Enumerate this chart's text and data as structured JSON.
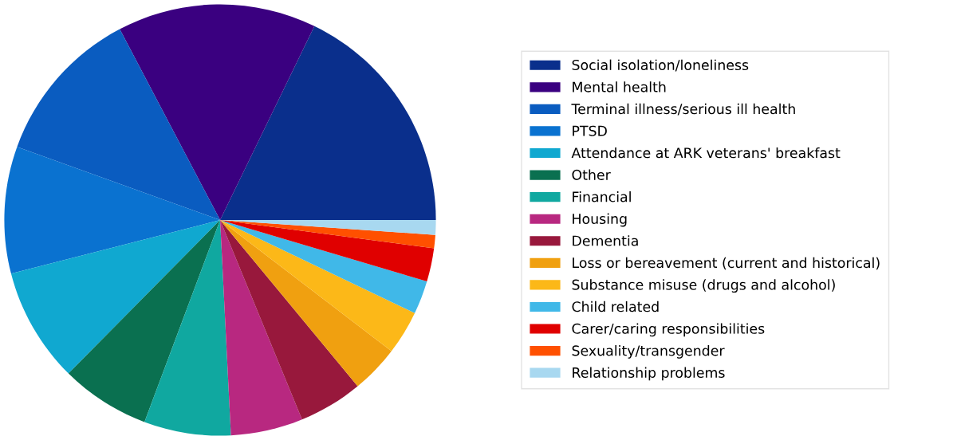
{
  "chart_data": {
    "type": "pie",
    "categories": [
      "Social isolation/loneliness",
      "Mental health",
      "Terminal illness/serious ill health",
      "PTSD",
      "Attendance at ARK veterans' breakfast",
      "Other",
      "Financial",
      "Housing",
      "Dementia",
      "Loss or bereavement (current and historical)",
      "Substance misuse (drugs and alcohol)",
      "Child related",
      "Carer/caring responsibilities",
      "Sexuality/transgender",
      "Relationship problems"
    ],
    "values": [
      17.8,
      14.9,
      11.8,
      9.5,
      8.6,
      6.7,
      6.5,
      5.4,
      4.8,
      3.6,
      3.3,
      2.5,
      2.5,
      1.0,
      1.1
    ],
    "colors": [
      "#0a2f8c",
      "#3a0080",
      "#0a5cc0",
      "#0a72d0",
      "#10a8d0",
      "#0a7050",
      "#10a8a0",
      "#b82880",
      "#98183c",
      "#f0a010",
      "#fcb818",
      "#40b8e8",
      "#e00000",
      "#ff5000",
      "#a8d8f0"
    ],
    "legend": "right"
  }
}
